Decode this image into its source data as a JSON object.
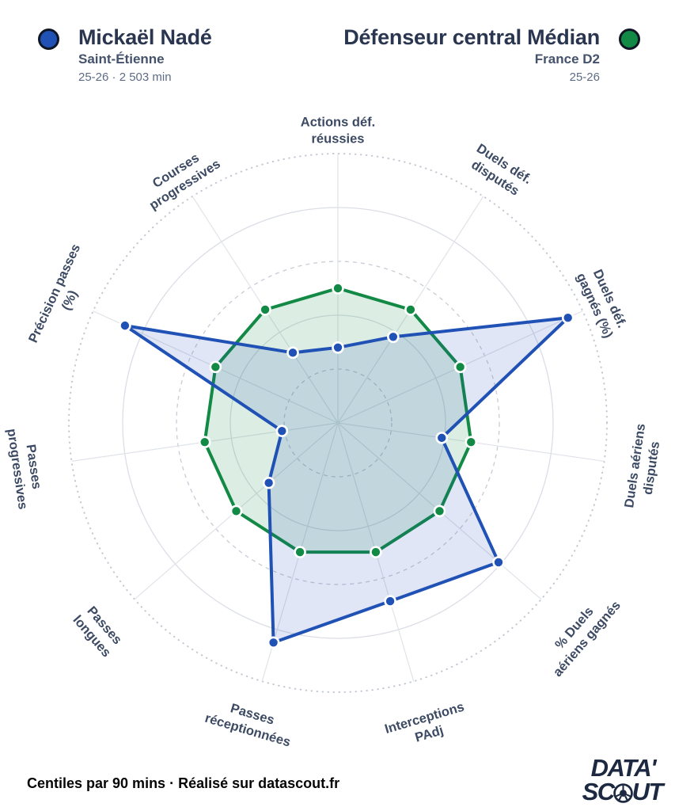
{
  "header": {
    "player": {
      "name": "Mickaël Nadé",
      "team": "Saint-Étienne",
      "season_minutes": "25-26 · 2 503 min",
      "color": "#2051b5"
    },
    "reference": {
      "name": "Défenseur central Médian",
      "league": "France D2",
      "season": "25-26",
      "color": "#128a45"
    }
  },
  "chart_data": {
    "type": "radar",
    "units": "percentile per 90 mins",
    "categories": [
      "Actions déf. réussies",
      "Duels déf. disputés",
      "Duels déf. gagnés (%)",
      "Duels aériens disputés",
      "% Duels aériens gagnés",
      "Interceptions PAdj",
      "Passes réceptionnées",
      "Passes longues",
      "Passes progressives",
      "Précision passes (%)",
      "Courses progressives"
    ],
    "categories_wrapped": [
      [
        "Actions déf.",
        "réussies"
      ],
      [
        "Duels déf.",
        "disputés"
      ],
      [
        "Duels déf.",
        "gagnés (%)"
      ],
      [
        "Duels aériens",
        "disputés"
      ],
      [
        "% Duels",
        "aériens gagnés"
      ],
      [
        "Interceptions",
        "PAdj"
      ],
      [
        "Passes",
        "réceptionnées"
      ],
      [
        "Passes",
        "longues"
      ],
      [
        "Passes",
        "progressives"
      ],
      [
        "Précision passes",
        "(%)"
      ],
      [
        "Courses",
        "progressives"
      ]
    ],
    "series": [
      {
        "name": "Mickaël Nadé",
        "color": "#2051b5",
        "fill_opacity": 0.14,
        "values": [
          28,
          38,
          94,
          39,
          79,
          69,
          85,
          34,
          21,
          87,
          31
        ]
      },
      {
        "name": "Défenseur central Médian",
        "color": "#128a45",
        "fill_opacity": 0.15,
        "values": [
          50,
          50,
          50,
          50,
          50,
          50,
          50,
          50,
          50,
          50,
          50
        ]
      }
    ],
    "scale": {
      "min": 0,
      "max": 100,
      "rings": [
        20,
        40,
        60,
        80,
        100
      ],
      "ring_styles": [
        "dashed",
        "solid",
        "dashed",
        "solid",
        "dotted"
      ]
    },
    "legend_position": "header"
  },
  "footer": {
    "note": "Centiles par 90 mins · Réalisé sur datascout.fr",
    "logo": {
      "line1": "DATA'",
      "line2_prefix": "SC",
      "line2_suffix": "UT"
    }
  }
}
